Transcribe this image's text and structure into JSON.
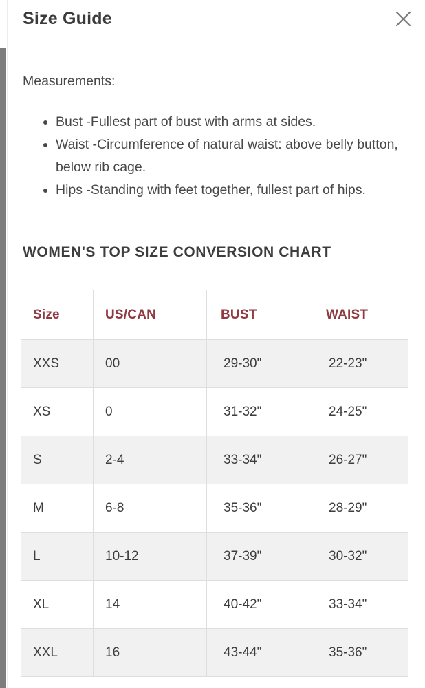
{
  "modal": {
    "title": "Size Guide"
  },
  "icons": {
    "close": "X cross glyph"
  },
  "measurements": {
    "label": "Measurements:",
    "items": [
      "Bust -Fullest part of bust with arms at sides.",
      "Waist -Circumference of natural waist: above belly button, below rib cage.",
      "Hips -Standing with feet together, fullest part of hips."
    ]
  },
  "chart_data": {
    "type": "table",
    "title": "WOMEN'S TOP SIZE CONVERSION CHART",
    "columns": [
      "Size",
      "US/CAN",
      "BUST",
      "WAIST"
    ],
    "rows": [
      [
        "XXS",
        "00",
        "29-30\"",
        "22-23\""
      ],
      [
        "XS",
        "0",
        "31-32\"",
        "24-25\""
      ],
      [
        "S",
        "2-4",
        "33-34\"",
        "26-27\""
      ],
      [
        "M",
        "6-8",
        "35-36\"",
        "28-29\""
      ],
      [
        "L",
        "10-12",
        "37-39\"",
        "30-32\""
      ],
      [
        "XL",
        "14",
        "40-42\"",
        "33-34\""
      ],
      [
        "XXL",
        "16",
        "43-44\"",
        "35-36\""
      ]
    ]
  },
  "colors": {
    "table_header_text": "#8e3a40",
    "row_alt_bg": "#f1f1f2",
    "table_border": "#dedede",
    "body_text": "#484848",
    "scrollbar_thumb": "#7d7d7d",
    "close_icon": "#7b7b7b"
  }
}
